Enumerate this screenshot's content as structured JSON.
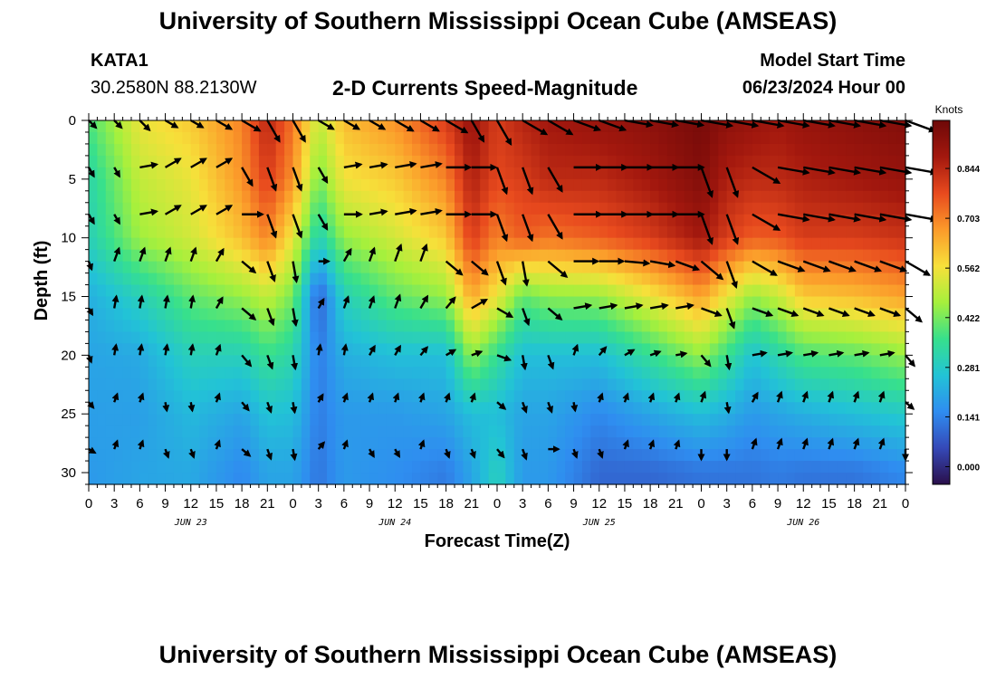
{
  "header": {
    "title": "University of Southern Mississippi Ocean Cube (AMSEAS)",
    "station_id": "KATA1",
    "station_coords": "30.2580N  88.2130W",
    "chart_title": "2-D Currents Speed-Magnitude",
    "model_label": "Model Start Time",
    "model_value": "06/23/2024 Hour 00"
  },
  "footer": {
    "title": "University of Southern Mississippi Ocean Cube (AMSEAS)"
  },
  "colors": {
    "colormap": [
      "#2a0f4a",
      "#3549b8",
      "#2f8df0",
      "#22c3d6",
      "#37e08c",
      "#a6f03c",
      "#f7e03a",
      "#fb9a2a",
      "#e84a1e",
      "#a3180e",
      "#6e0808"
    ],
    "arrow": "#000000"
  },
  "chart_data": {
    "type": "heatmap",
    "title": "2-D Currents Speed-Magnitude",
    "xlabel": "Forecast Time(Z)",
    "ylabel": "Depth (ft)",
    "x_tick_labels": [
      "0",
      "3",
      "6",
      "9",
      "12",
      "15",
      "18",
      "21",
      "0",
      "3",
      "6",
      "9",
      "12",
      "15",
      "18",
      "21",
      "0",
      "3",
      "6",
      "9",
      "12",
      "15",
      "18",
      "21",
      "0",
      "3",
      "6",
      "9",
      "12",
      "15",
      "18",
      "21",
      "0"
    ],
    "date_labels": [
      {
        "label": "JUN 23",
        "hour": 12
      },
      {
        "label": "JUN 24",
        "hour": 36
      },
      {
        "label": "JUN 25",
        "hour": 60
      },
      {
        "label": "JUN 26",
        "hour": 84
      }
    ],
    "xlim": [
      0,
      96
    ],
    "y_ticks": [
      0,
      5,
      10,
      15,
      20,
      25,
      30
    ],
    "ylim": [
      0,
      31
    ],
    "y_inverted": true,
    "colorbar": {
      "unit": "Knots",
      "tick_values": [
        0.0,
        0.141,
        0.281,
        0.422,
        0.562,
        0.703,
        0.844
      ],
      "tick_labels": [
        "0.000",
        "0.141",
        "0.281",
        "0.422",
        "0.562",
        "0.703",
        "0.844"
      ],
      "range": [
        -0.05,
        0.98
      ]
    },
    "speed_field": {
      "hours": [
        0,
        6,
        12,
        18,
        21,
        24,
        27,
        30,
        36,
        42,
        45,
        48,
        51,
        54,
        60,
        66,
        72,
        75,
        78,
        81,
        84,
        90,
        96
      ],
      "depths": [
        0,
        5,
        10,
        15,
        20,
        25,
        30
      ],
      "speed_knots": [
        [
          0.38,
          0.32,
          0.3,
          0.22,
          0.2,
          0.19,
          0.18
        ],
        [
          0.55,
          0.5,
          0.46,
          0.3,
          0.21,
          0.19,
          0.2
        ],
        [
          0.6,
          0.55,
          0.52,
          0.4,
          0.3,
          0.24,
          0.21
        ],
        [
          0.7,
          0.68,
          0.62,
          0.45,
          0.3,
          0.2,
          0.15
        ],
        [
          0.85,
          0.8,
          0.7,
          0.5,
          0.36,
          0.26,
          0.2
        ],
        [
          0.72,
          0.68,
          0.55,
          0.42,
          0.32,
          0.25,
          0.2
        ],
        [
          0.5,
          0.42,
          0.3,
          0.08,
          0.13,
          0.13,
          0.12
        ],
        [
          0.62,
          0.56,
          0.45,
          0.3,
          0.22,
          0.18,
          0.18
        ],
        [
          0.68,
          0.6,
          0.52,
          0.4,
          0.25,
          0.18,
          0.16
        ],
        [
          0.8,
          0.7,
          0.6,
          0.45,
          0.25,
          0.2,
          0.13
        ],
        [
          0.9,
          0.86,
          0.8,
          0.65,
          0.45,
          0.25,
          0.2
        ],
        [
          0.8,
          0.78,
          0.7,
          0.55,
          0.35,
          0.25,
          0.3
        ],
        [
          0.85,
          0.8,
          0.75,
          0.4,
          0.25,
          0.2,
          0.18
        ],
        [
          0.88,
          0.84,
          0.72,
          0.44,
          0.25,
          0.2,
          0.18
        ],
        [
          0.9,
          0.84,
          0.75,
          0.45,
          0.25,
          0.15,
          0.1
        ],
        [
          0.92,
          0.88,
          0.8,
          0.55,
          0.35,
          0.2,
          0.1
        ],
        [
          0.96,
          0.94,
          0.88,
          0.66,
          0.45,
          0.25,
          0.12
        ],
        [
          0.92,
          0.86,
          0.8,
          0.55,
          0.36,
          0.22,
          0.12
        ],
        [
          0.9,
          0.84,
          0.75,
          0.45,
          0.26,
          0.18,
          0.12
        ],
        [
          0.88,
          0.84,
          0.76,
          0.5,
          0.32,
          0.2,
          0.13
        ],
        [
          0.9,
          0.86,
          0.8,
          0.6,
          0.38,
          0.22,
          0.12
        ],
        [
          0.92,
          0.88,
          0.8,
          0.62,
          0.4,
          0.25,
          0.12
        ],
        [
          0.94,
          0.9,
          0.82,
          0.66,
          0.45,
          0.28,
          0.15
        ]
      ]
    },
    "vectors": {
      "hours": [
        0,
        3,
        6,
        9,
        12,
        15,
        18,
        21,
        24,
        27,
        30,
        33,
        36,
        39,
        42,
        45,
        48,
        51,
        54,
        57,
        60,
        63,
        66,
        69,
        72,
        75,
        78,
        81,
        84,
        87,
        90,
        93,
        96
      ],
      "depths": [
        0,
        4,
        8,
        12,
        16,
        20,
        24,
        28
      ],
      "note": "direction in degrees, compass convention (0 = up/north, 90 = right/east); speed in knots",
      "direction_deg": [
        [
          135,
          135,
          135,
          120,
          120,
          120,
          120,
          150,
          150,
          120,
          120,
          120,
          120,
          120,
          120,
          150,
          150,
          120,
          120,
          110,
          110,
          100,
          100,
          100,
          100,
          100,
          100,
          100,
          100,
          100,
          100,
          100,
          110
        ],
        [
          150,
          150,
          80,
          60,
          60,
          60,
          150,
          160,
          160,
          150,
          80,
          80,
          80,
          80,
          90,
          90,
          160,
          160,
          150,
          90,
          90,
          90,
          90,
          90,
          160,
          160,
          120,
          100,
          100,
          100,
          100,
          100,
          100
        ],
        [
          150,
          150,
          80,
          60,
          60,
          60,
          90,
          160,
          160,
          150,
          90,
          80,
          80,
          80,
          90,
          90,
          160,
          160,
          150,
          90,
          90,
          90,
          90,
          90,
          160,
          160,
          120,
          100,
          100,
          100,
          100,
          100,
          100
        ],
        [
          160,
          20,
          20,
          20,
          20,
          30,
          130,
          160,
          170,
          90,
          30,
          20,
          20,
          20,
          130,
          130,
          160,
          170,
          130,
          90,
          90,
          95,
          100,
          110,
          130,
          160,
          120,
          110,
          110,
          110,
          110,
          110,
          120
        ],
        [
          150,
          10,
          10,
          10,
          10,
          30,
          130,
          160,
          170,
          30,
          20,
          20,
          20,
          30,
          40,
          60,
          120,
          160,
          130,
          80,
          80,
          80,
          80,
          80,
          110,
          160,
          110,
          110,
          110,
          110,
          110,
          110,
          130
        ],
        [
          160,
          10,
          10,
          10,
          10,
          20,
          140,
          160,
          170,
          10,
          10,
          30,
          30,
          40,
          60,
          70,
          110,
          170,
          160,
          20,
          40,
          60,
          70,
          80,
          140,
          170,
          80,
          80,
          80,
          80,
          80,
          80,
          140
        ],
        [
          140,
          20,
          20,
          170,
          170,
          20,
          140,
          160,
          170,
          30,
          20,
          20,
          20,
          20,
          20,
          20,
          130,
          160,
          160,
          170,
          20,
          20,
          20,
          20,
          20,
          170,
          30,
          20,
          20,
          20,
          20,
          20,
          130
        ],
        [
          120,
          20,
          20,
          160,
          160,
          20,
          130,
          160,
          170,
          40,
          20,
          150,
          150,
          20,
          160,
          160,
          140,
          160,
          90,
          160,
          160,
          20,
          20,
          20,
          180,
          180,
          20,
          20,
          20,
          20,
          20,
          20,
          180
        ]
      ],
      "speed_knots": [
        [
          0.3,
          0.3,
          0.4,
          0.4,
          0.4,
          0.5,
          0.6,
          0.7,
          0.7,
          0.5,
          0.5,
          0.5,
          0.6,
          0.6,
          0.7,
          0.7,
          0.8,
          0.8,
          0.8,
          0.8,
          0.8,
          0.8,
          0.8,
          0.8,
          0.9,
          0.9,
          0.9,
          0.9,
          0.9,
          0.9,
          0.9,
          0.9,
          0.9
        ],
        [
          0.3,
          0.3,
          0.5,
          0.5,
          0.5,
          0.5,
          0.6,
          0.7,
          0.7,
          0.5,
          0.5,
          0.5,
          0.6,
          0.6,
          0.7,
          0.7,
          0.8,
          0.8,
          0.8,
          0.8,
          0.8,
          0.8,
          0.8,
          0.8,
          0.9,
          0.9,
          0.9,
          0.9,
          0.9,
          0.9,
          0.9,
          0.9,
          0.9
        ],
        [
          0.3,
          0.3,
          0.5,
          0.5,
          0.5,
          0.5,
          0.6,
          0.7,
          0.7,
          0.5,
          0.5,
          0.5,
          0.6,
          0.6,
          0.7,
          0.7,
          0.8,
          0.8,
          0.8,
          0.8,
          0.8,
          0.8,
          0.8,
          0.8,
          0.9,
          0.9,
          0.9,
          0.9,
          0.9,
          0.9,
          0.9,
          0.9,
          0.9
        ],
        [
          0.25,
          0.4,
          0.4,
          0.4,
          0.4,
          0.4,
          0.5,
          0.6,
          0.6,
          0.3,
          0.4,
          0.4,
          0.5,
          0.5,
          0.6,
          0.6,
          0.7,
          0.7,
          0.7,
          0.7,
          0.7,
          0.7,
          0.7,
          0.7,
          0.8,
          0.8,
          0.8,
          0.8,
          0.8,
          0.8,
          0.8,
          0.8,
          0.8
        ],
        [
          0.2,
          0.35,
          0.35,
          0.35,
          0.35,
          0.35,
          0.5,
          0.5,
          0.5,
          0.3,
          0.35,
          0.35,
          0.4,
          0.4,
          0.4,
          0.5,
          0.5,
          0.5,
          0.5,
          0.5,
          0.5,
          0.5,
          0.5,
          0.5,
          0.6,
          0.6,
          0.6,
          0.6,
          0.6,
          0.6,
          0.6,
          0.6,
          0.6
        ],
        [
          0.2,
          0.3,
          0.3,
          0.3,
          0.3,
          0.3,
          0.4,
          0.4,
          0.4,
          0.3,
          0.3,
          0.3,
          0.3,
          0.3,
          0.3,
          0.3,
          0.4,
          0.4,
          0.4,
          0.3,
          0.3,
          0.3,
          0.3,
          0.3,
          0.4,
          0.4,
          0.4,
          0.4,
          0.4,
          0.4,
          0.4,
          0.4,
          0.4
        ],
        [
          0.2,
          0.25,
          0.25,
          0.25,
          0.25,
          0.25,
          0.3,
          0.3,
          0.3,
          0.25,
          0.25,
          0.25,
          0.25,
          0.25,
          0.25,
          0.25,
          0.3,
          0.3,
          0.3,
          0.25,
          0.25,
          0.25,
          0.25,
          0.25,
          0.3,
          0.3,
          0.3,
          0.3,
          0.3,
          0.3,
          0.3,
          0.3,
          0.3
        ],
        [
          0.2,
          0.25,
          0.25,
          0.25,
          0.25,
          0.25,
          0.3,
          0.3,
          0.3,
          0.25,
          0.25,
          0.25,
          0.25,
          0.25,
          0.25,
          0.25,
          0.3,
          0.3,
          0.3,
          0.25,
          0.25,
          0.25,
          0.25,
          0.25,
          0.3,
          0.3,
          0.3,
          0.3,
          0.3,
          0.3,
          0.3,
          0.3,
          0.3
        ]
      ]
    }
  }
}
